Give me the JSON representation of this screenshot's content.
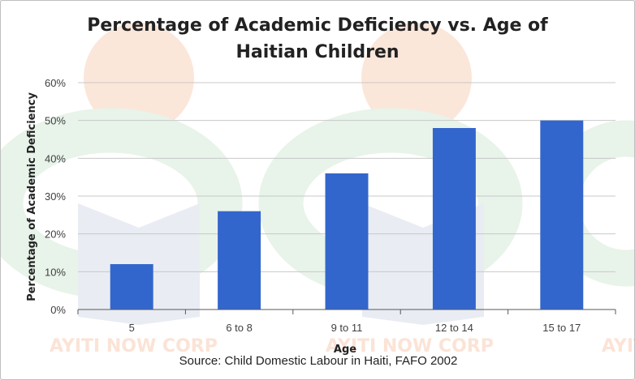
{
  "chart_data": {
    "type": "bar",
    "title": "Percentage of Academic Deficiency vs. Age of Haitian Children",
    "xlabel": "Age",
    "ylabel": "Percentage of Academic Deficiency",
    "categories": [
      "5",
      "6 to 8",
      "9 to 11",
      "12 to 14",
      "15 to 17"
    ],
    "values": [
      12,
      26,
      36,
      48,
      50
    ],
    "ylim": [
      0,
      60
    ],
    "yticks": [
      "0%",
      "10%",
      "20%",
      "30%",
      "40%",
      "50%",
      "60%"
    ],
    "grid": true,
    "legend": "none",
    "bar_color": "#3366cc",
    "source": "Source: Child Domestic Labour in Haiti, FAFO 2002"
  },
  "watermark": {
    "text_left": "AYITI NOW CORP",
    "text_mid": "AYITI NOW CORP",
    "text_right": "AYIT",
    "color_orange": "#fbe3d6",
    "color_green": "#e5f2e8",
    "color_blue": "#e6e9f2"
  }
}
